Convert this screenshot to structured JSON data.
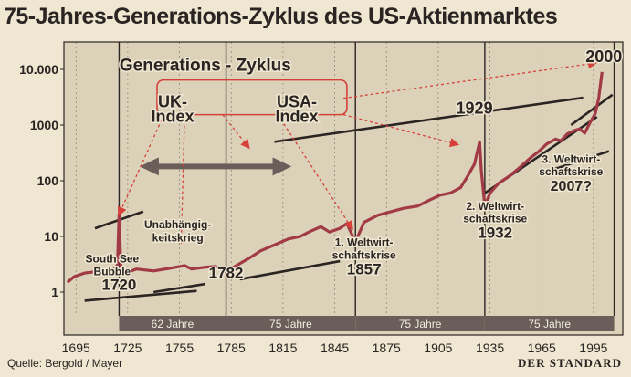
{
  "title": "75-Jahres-Generations-Zyklus des US-Aktienmarktes",
  "source": "Quelle: Bergold / Mayer",
  "brand": "DER STANDARD",
  "colors": {
    "background": "#efe7d2",
    "plot": "#dcd2b9",
    "line": "#a23a45",
    "text": "#2a2422",
    "accent": "#d6403a",
    "band": "#6a5e5b"
  },
  "chart_data": {
    "type": "line",
    "title": "75-Jahres-Generations-Zyklus des US-Aktienmarktes",
    "xlabel": "",
    "ylabel": "",
    "yscale": "log",
    "xlim": [
      1688,
      2012
    ],
    "ylim": [
      0.45,
      20000
    ],
    "x_ticks": [
      1695,
      1725,
      1755,
      1785,
      1815,
      1845,
      1875,
      1905,
      1935,
      1965,
      1995
    ],
    "x_tick_labels": [
      "1695",
      "1725",
      "1755",
      "1785",
      "1815",
      "1845",
      "1875",
      "1905",
      "1935",
      "1965",
      "1995"
    ],
    "y_ticks": [
      1,
      10,
      100,
      1000,
      10000
    ],
    "y_tick_labels": [
      "1",
      "10",
      "100",
      "1000",
      "10.000"
    ],
    "grid": "vertical-dashed",
    "cycle_lines": [
      1720,
      1782,
      1857,
      1932,
      2007
    ],
    "series": [
      {
        "name": "",
        "points": [
          [
            1690,
            1.5
          ],
          [
            1694,
            1.9
          ],
          [
            1700,
            2.2
          ],
          [
            1705,
            2.3
          ],
          [
            1710,
            2.1
          ],
          [
            1716,
            2.5
          ],
          [
            1719,
            3
          ],
          [
            1720,
            25
          ],
          [
            1721,
            3
          ],
          [
            1724,
            2.2
          ],
          [
            1730,
            2.6
          ],
          [
            1740,
            2.4
          ],
          [
            1750,
            2.7
          ],
          [
            1758,
            3
          ],
          [
            1762,
            2.6
          ],
          [
            1770,
            2.8
          ],
          [
            1776,
            2.9
          ],
          [
            1782,
            2.3
          ],
          [
            1788,
            3
          ],
          [
            1795,
            4
          ],
          [
            1802,
            5.5
          ],
          [
            1810,
            7
          ],
          [
            1818,
            9
          ],
          [
            1825,
            10
          ],
          [
            1830,
            12
          ],
          [
            1837,
            15
          ],
          [
            1842,
            12
          ],
          [
            1848,
            14
          ],
          [
            1852,
            17
          ],
          [
            1857,
            8
          ],
          [
            1862,
            18
          ],
          [
            1870,
            24
          ],
          [
            1878,
            28
          ],
          [
            1885,
            32
          ],
          [
            1893,
            35
          ],
          [
            1900,
            45
          ],
          [
            1906,
            55
          ],
          [
            1912,
            60
          ],
          [
            1918,
            75
          ],
          [
            1922,
            120
          ],
          [
            1926,
            200
          ],
          [
            1929,
            500
          ],
          [
            1930,
            150
          ],
          [
            1932,
            35
          ],
          [
            1935,
            60
          ],
          [
            1940,
            90
          ],
          [
            1946,
            120
          ],
          [
            1952,
            170
          ],
          [
            1958,
            250
          ],
          [
            1963,
            330
          ],
          [
            1968,
            460
          ],
          [
            1973,
            560
          ],
          [
            1976,
            520
          ],
          [
            1980,
            700
          ],
          [
            1984,
            800
          ],
          [
            1987,
            850
          ],
          [
            1990,
            720
          ],
          [
            1993,
            1100
          ],
          [
            1996,
            1600
          ],
          [
            1998,
            3000
          ],
          [
            2000,
            9000
          ]
        ]
      }
    ],
    "annotations": [
      {
        "text": "Generations - Zyklus",
        "x": 1770,
        "y": 9500
      },
      {
        "text": "UK-",
        "x": 1751,
        "y": 2100
      },
      {
        "text": "Index",
        "x": 1751,
        "y": 1150
      },
      {
        "text": "USA-",
        "x": 1823,
        "y": 2100
      },
      {
        "text": "Index",
        "x": 1823,
        "y": 1150
      },
      {
        "text": "2000",
        "x": 2001,
        "y": 13500
      },
      {
        "text": "1929",
        "x": 1926,
        "y": 1600
      },
      {
        "text": "South See",
        "x": 1716,
        "y": 3.4
      },
      {
        "text": "Bubble",
        "x": 1716,
        "y": 2.0
      },
      {
        "text": "1720",
        "x": 1720,
        "y": 1.1
      },
      {
        "text": "Unabhängig-",
        "x": 1754,
        "y": 14
      },
      {
        "text": "keitskrieg",
        "x": 1754,
        "y": 8.2
      },
      {
        "text": "1782",
        "x": 1782,
        "y": 1.8
      },
      {
        "text": "1. Weltwirt-",
        "x": 1862,
        "y": 6.7
      },
      {
        "text": "schaftskrise",
        "x": 1862,
        "y": 4
      },
      {
        "text": "1857",
        "x": 1862,
        "y": 2.1
      },
      {
        "text": "2. Weltwirt-",
        "x": 1938,
        "y": 30
      },
      {
        "text": "schaftskrise",
        "x": 1938,
        "y": 18
      },
      {
        "text": "1932",
        "x": 1938,
        "y": 9.5
      },
      {
        "text": "3. Weltwirt-",
        "x": 1982,
        "y": 210
      },
      {
        "text": "schaftskrise",
        "x": 1982,
        "y": 125
      },
      {
        "text": "2007?",
        "x": 1982,
        "y": 66
      }
    ],
    "bands": [
      {
        "label": "62 Jahre",
        "x0": 1720,
        "x1": 1782
      },
      {
        "label": "75 Jahre",
        "x0": 1782,
        "x1": 1857
      },
      {
        "label": "75 Jahre",
        "x0": 1857,
        "x1": 1932
      },
      {
        "label": "75 Jahre",
        "x0": 1932,
        "x1": 2007
      }
    ]
  }
}
